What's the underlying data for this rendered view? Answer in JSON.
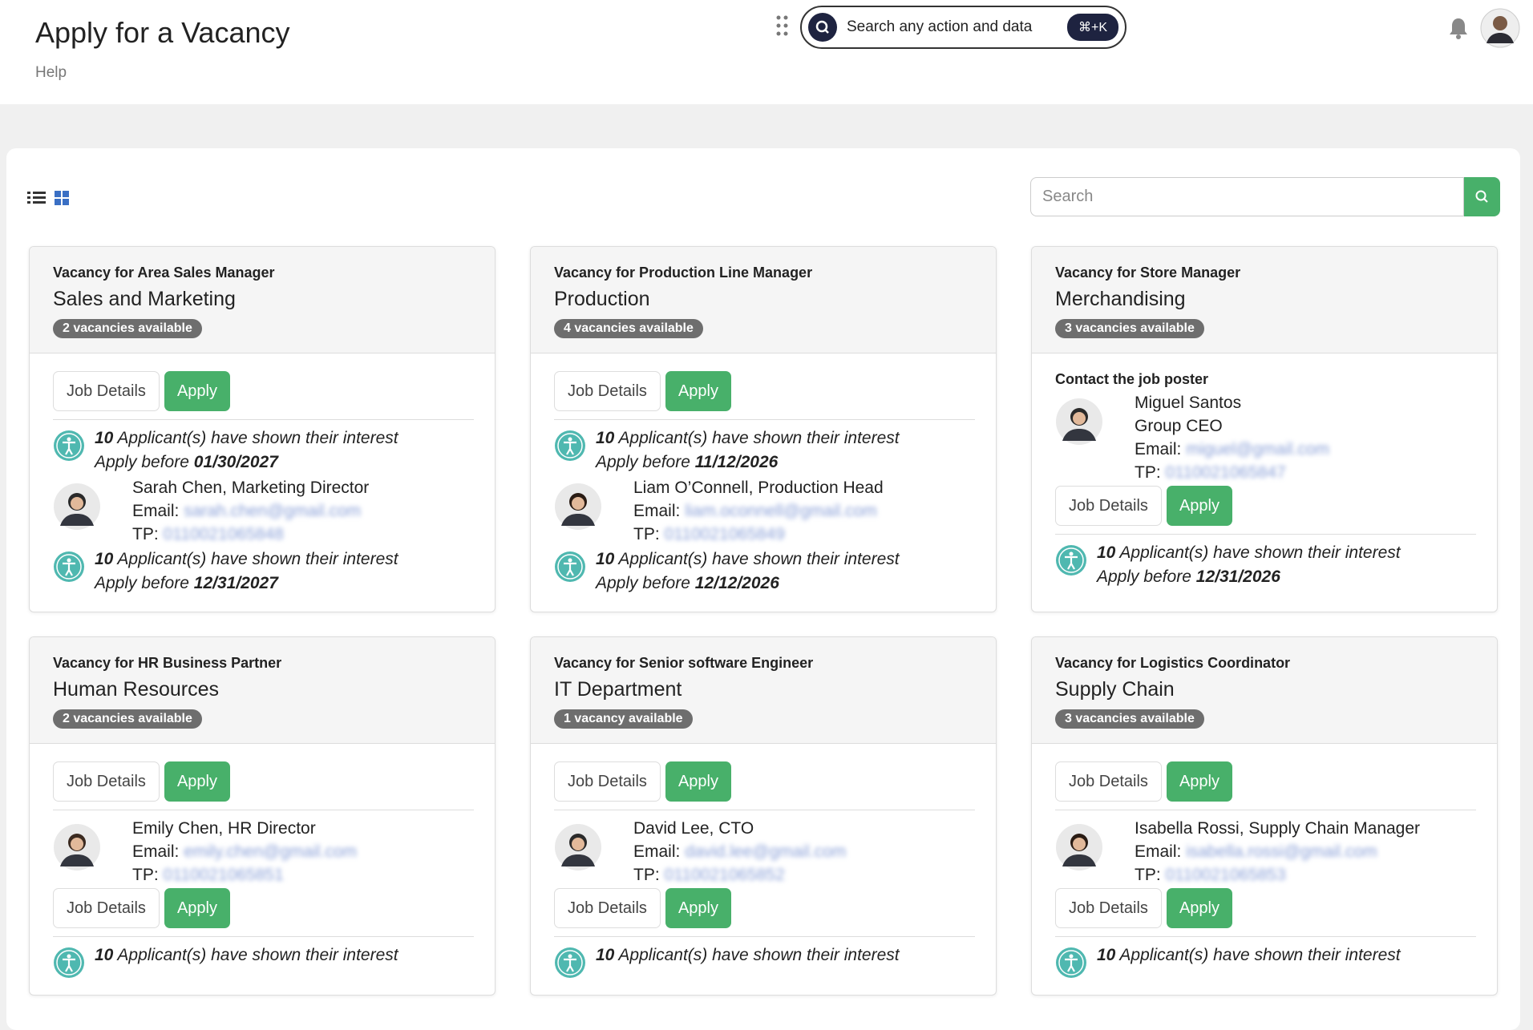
{
  "header": {
    "title": "Apply for a Vacancy",
    "help": "Help",
    "search": "Search any action and data",
    "shortcut": "⌘+K"
  },
  "toolbar": {
    "search_placeholder": "Search"
  },
  "cards": [
    {
      "title": "Vacancy for Area Sales Manager",
      "department": "Sales and Marketing",
      "badge": "2 vacancies available",
      "blocks": [
        {
          "kind": "actions",
          "buttons": [
            "Job Details",
            "Apply"
          ]
        },
        {
          "kind": "interest",
          "count": "10",
          "text": "Applicant(s) have shown their interest",
          "apply_label": "Apply before",
          "date": "01/30/2027"
        },
        {
          "kind": "contact",
          "name": "Sarah Chen, Marketing Director",
          "email_label": "Email:",
          "email": "sarah.chen@gmail.com",
          "tp_label": "TP:",
          "tp": "0110021065848"
        },
        {
          "kind": "interest",
          "count": "10",
          "text": "Applicant(s) have shown their interest",
          "apply_label": "Apply before",
          "date": "12/31/2027"
        }
      ]
    },
    {
      "title": "Vacancy for Production Line Manager",
      "department": "Production",
      "badge": "4 vacancies available",
      "blocks": [
        {
          "kind": "actions",
          "buttons": [
            "Job Details",
            "Apply"
          ]
        },
        {
          "kind": "interest",
          "count": "10",
          "text": "Applicant(s) have shown their interest",
          "apply_label": "Apply before",
          "date": "11/12/2026"
        },
        {
          "kind": "contact",
          "name": "Liam O’Connell, Production Head",
          "email_label": "Email:",
          "email": "liam.oconnell@gmail.com",
          "tp_label": "TP:",
          "tp": "0110021065849"
        },
        {
          "kind": "interest",
          "count": "10",
          "text": "Applicant(s) have shown their interest",
          "apply_label": "Apply before",
          "date": "12/12/2026"
        }
      ]
    },
    {
      "title": "Vacancy for Store Manager",
      "department": "Merchandising",
      "badge": "3 vacancies available",
      "blocks": [
        {
          "kind": "poster",
          "heading": "Contact the job poster",
          "name": "Miguel Santos",
          "role": "Group CEO",
          "email_label": "Email:",
          "email": "miguel@gmail.com",
          "tp_label": "TP:",
          "tp": "0110021065847"
        },
        {
          "kind": "actions",
          "buttons": [
            "Job Details",
            "Apply"
          ]
        },
        {
          "kind": "interest",
          "count": "10",
          "text": "Applicant(s) have shown their interest",
          "apply_label": "Apply before",
          "date": "12/31/2026"
        }
      ]
    },
    {
      "title": "Vacancy for HR Business Partner",
      "department": "Human Resources",
      "badge": "2 vacancies available",
      "blocks": [
        {
          "kind": "actions",
          "buttons": [
            "Job Details",
            "Apply"
          ]
        },
        {
          "kind": "contact",
          "name": "Emily Chen, HR Director",
          "email_label": "Email:",
          "email": "emily.chen@gmail.com",
          "tp_label": "TP:",
          "tp": "0110021065851"
        },
        {
          "kind": "actions",
          "buttons": [
            "Job Details",
            "Apply"
          ]
        },
        {
          "kind": "interest",
          "count": "10",
          "text": "Applicant(s) have shown their interest"
        }
      ]
    },
    {
      "title": "Vacancy for Senior software Engineer",
      "department": "IT Department",
      "badge": "1 vacancy available",
      "blocks": [
        {
          "kind": "actions",
          "buttons": [
            "Job Details",
            "Apply"
          ]
        },
        {
          "kind": "contact",
          "name": "David Lee, CTO",
          "email_label": "Email:",
          "email": "david.lee@gmail.com",
          "tp_label": "TP:",
          "tp": "0110021065852"
        },
        {
          "kind": "actions",
          "buttons": [
            "Job Details",
            "Apply"
          ]
        },
        {
          "kind": "interest",
          "count": "10",
          "text": "Applicant(s) have shown their interest"
        }
      ]
    },
    {
      "title": "Vacancy for Logistics Coordinator",
      "department": "Supply Chain",
      "badge": "3 vacancies available",
      "blocks": [
        {
          "kind": "actions",
          "buttons": [
            "Job Details",
            "Apply"
          ]
        },
        {
          "kind": "contact",
          "name": "Isabella Rossi, Supply Chain Manager",
          "email_label": "Email:",
          "email": "isabella.rossi@gmail.com",
          "tp_label": "TP:",
          "tp": "0110021065853"
        },
        {
          "kind": "actions",
          "buttons": [
            "Job Details",
            "Apply"
          ]
        },
        {
          "kind": "interest",
          "count": "10",
          "text": "Applicant(s) have shown their interest"
        }
      ]
    }
  ]
}
